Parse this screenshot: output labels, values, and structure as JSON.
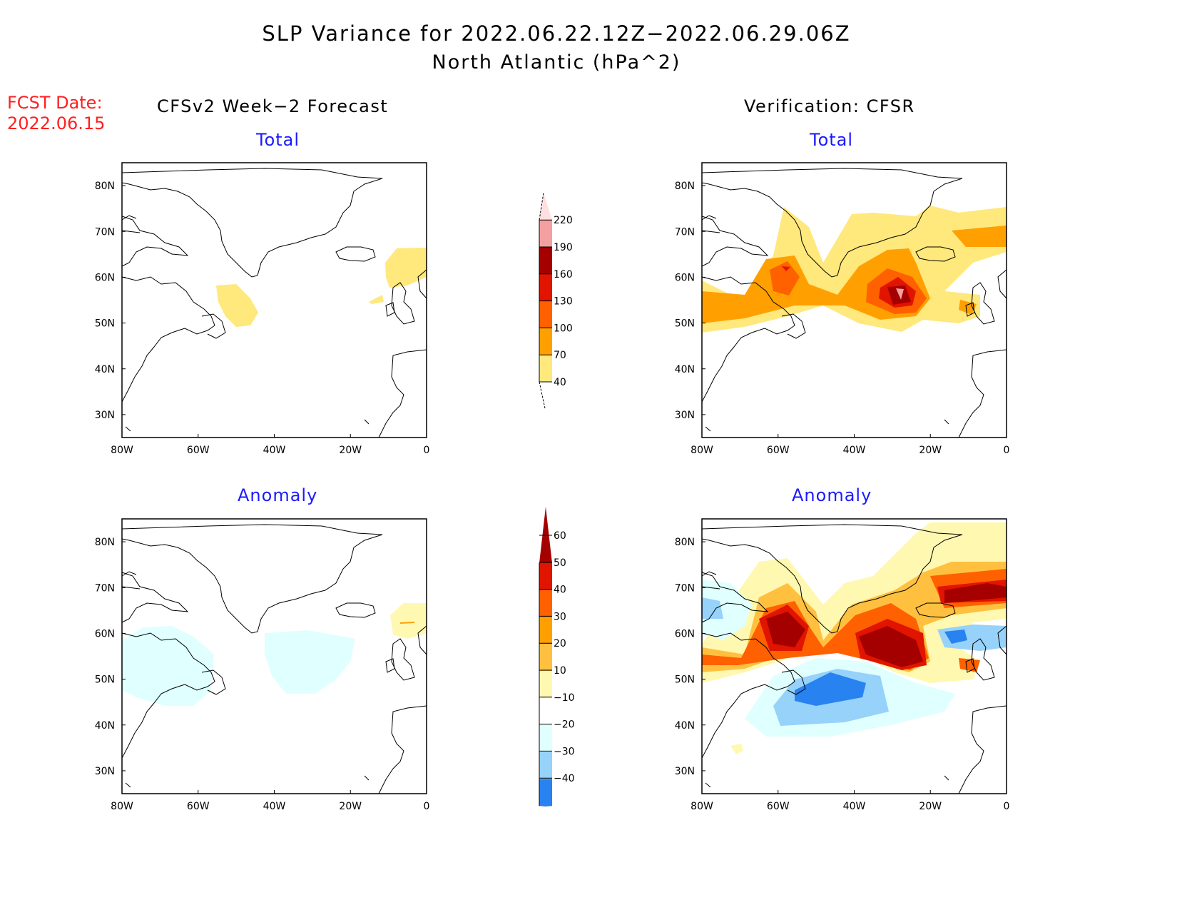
{
  "title": {
    "line1": "SLP Variance for 2022.06.22.12Z−2022.06.29.06Z",
    "line2": "North Atlantic (hPa^2)"
  },
  "fcst_date": {
    "label": "FCST Date:",
    "value": "2022.06.15"
  },
  "columns": {
    "left": "CFSv2 Week−2 Forecast",
    "right": "Verification: CFSR"
  },
  "subtitles": {
    "total": "Total",
    "anomaly": "Anomaly"
  },
  "chart_data": [
    {
      "type": "heatmap",
      "title": "CFSv2 Week-2 Forecast Total",
      "xlim": [
        -80,
        0
      ],
      "ylim": [
        25,
        85
      ],
      "xticks": [
        "80W",
        "60W",
        "40W",
        "20W",
        "0"
      ],
      "yticks": [
        "30N",
        "40N",
        "50N",
        "60N",
        "70N",
        "80N"
      ],
      "features": [
        "weak 40-70 variance near 50N 50W",
        "40-70 near 62N 5W"
      ]
    },
    {
      "type": "heatmap",
      "title": "Verification CFSR Total",
      "xlim": [
        -80,
        0
      ],
      "ylim": [
        25,
        85
      ],
      "xticks": [
        "80W",
        "60W",
        "40W",
        "20W",
        "0"
      ],
      "yticks": [
        "30N",
        "40N",
        "50N",
        "60N",
        "70N",
        "80N"
      ],
      "features": [
        "max >220 near 57N 27W",
        "100-130 near 61N 57W"
      ]
    },
    {
      "type": "heatmap",
      "title": "CFSv2 Week-2 Forecast Anomaly",
      "xlim": [
        -80,
        0
      ],
      "ylim": [
        25,
        85
      ],
      "xticks": [
        "80W",
        "60W",
        "40W",
        "20W",
        "0"
      ],
      "yticks": [
        "30N",
        "40N",
        "50N",
        "60N",
        "70N",
        "80N"
      ],
      "features": [
        "-10 to -20 near 52N 68W and 55N 35W",
        "10-20 near 62N 5W"
      ]
    },
    {
      "type": "heatmap",
      "title": "Verification CFSR Anomaly",
      "xlim": [
        -80,
        0
      ],
      "ylim": [
        25,
        85
      ],
      "xticks": [
        "80W",
        "60W",
        "40W",
        "20W",
        "0"
      ],
      "yticks": [
        "30N",
        "40N",
        "50N",
        "60N",
        "70N",
        "80N"
      ],
      "features": [
        ">60 near 57N 28W, 61N 57W, 68N 8W",
        "-30 to -40 near 48N 45W"
      ]
    }
  ],
  "colorbars": {
    "total": {
      "levels": [
        "40",
        "70",
        "100",
        "130",
        "160",
        "190",
        "220"
      ],
      "colors": [
        "#ffe87c",
        "#ffa000",
        "#ff6000",
        "#e11400",
        "#a50000",
        "#f4a0a0",
        "#ffe0e0"
      ]
    },
    "anomaly": {
      "levels": [
        "60",
        "50",
        "40",
        "30",
        "20",
        "10",
        "−10",
        "−20",
        "−30",
        "−40"
      ],
      "colors": [
        "#a50000",
        "#e11400",
        "#ff6000",
        "#ffa000",
        "#ffc040",
        "#fff8b0",
        "#ffffff",
        "#e0ffff",
        "#96d2fa",
        "#2882f0",
        "#1464d2"
      ]
    }
  }
}
